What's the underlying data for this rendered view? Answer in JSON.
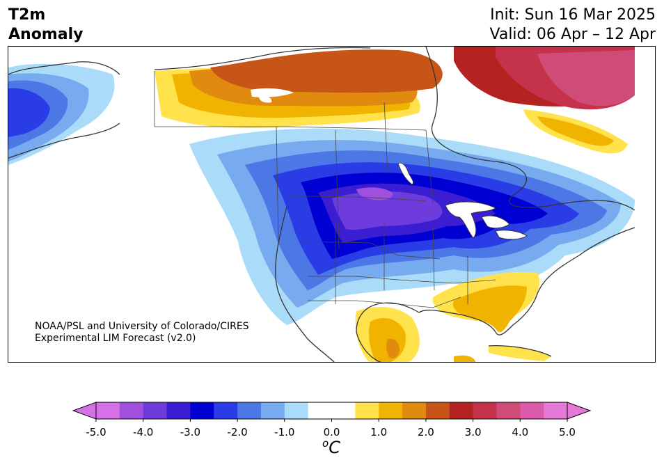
{
  "title": {
    "left_line1": "T2m",
    "left_line2": "Anomaly",
    "right_line1": "Init: Sun 16 Mar 2025",
    "right_line2": "Valid: 06 Apr – 12 Apr"
  },
  "credit": {
    "line1": "NOAA/PSL and University of Colorado/CIRES",
    "line2": "Experimental LIM Forecast (v2.0)"
  },
  "colorbar": {
    "ticks": [
      "-5.0",
      "-4.0",
      "-3.0",
      "-2.0",
      "-1.0",
      "0.0",
      "1.0",
      "2.0",
      "3.0",
      "4.0",
      "5.0"
    ],
    "unit_base": "C",
    "unit_sup": "o",
    "levels": [
      {
        "value": -5.0,
        "color": "#d670e6"
      },
      {
        "value": -4.5,
        "color": "#a050dc"
      },
      {
        "value": -4.0,
        "color": "#6e3cdc"
      },
      {
        "value": -3.5,
        "color": "#3c1ed2"
      },
      {
        "value": -3.0,
        "color": "#0000d2"
      },
      {
        "value": -2.5,
        "color": "#2a3ce6"
      },
      {
        "value": -2.0,
        "color": "#4c78e6"
      },
      {
        "value": -1.5,
        "color": "#78aaf0"
      },
      {
        "value": -1.0,
        "color": "#aadcfa"
      },
      {
        "value": -0.5,
        "color": "#ffffff"
      },
      {
        "value": 0.0,
        "color": "#ffffff"
      },
      {
        "value": 0.5,
        "color": "#ffe24c"
      },
      {
        "value": 1.0,
        "color": "#f0b400"
      },
      {
        "value": 1.5,
        "color": "#e08a10"
      },
      {
        "value": 2.0,
        "color": "#c85518"
      },
      {
        "value": 2.5,
        "color": "#b42222"
      },
      {
        "value": 3.0,
        "color": "#c4324c"
      },
      {
        "value": 3.5,
        "color": "#d04c78"
      },
      {
        "value": 4.0,
        "color": "#dc5aaa"
      },
      {
        "value": 4.5,
        "color": "#e678d8"
      }
    ],
    "extend_low_color": "#d670e6",
    "extend_high_color": "#e678d8"
  }
}
